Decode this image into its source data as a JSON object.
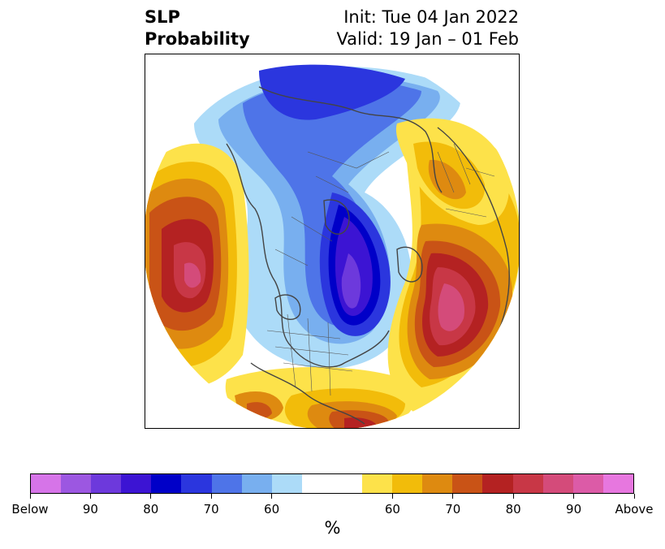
{
  "title": {
    "left_line1": "SLP",
    "left_line2": "Probability",
    "right_line1": "Init: Tue 04 Jan 2022",
    "right_line2": "Valid: 19 Jan – 01 Feb"
  },
  "colorbar": {
    "colors": [
      "#d674e8",
      "#9c57e1",
      "#6d39dc",
      "#3c14d3",
      "#0000c8",
      "#2b36de",
      "#4e74e8",
      "#78afef",
      "#acdbf8",
      "#ffffff",
      "#ffffff",
      "#fde24a",
      "#f2bc0a",
      "#de8a10",
      "#c95316",
      "#b42222",
      "#c83746",
      "#d44b7a",
      "#dc5ba7",
      "#e777df"
    ],
    "tick_labels": [
      "Below",
      "90",
      "80",
      "70",
      "60",
      "60",
      "70",
      "80",
      "90",
      "Above"
    ],
    "unit": "%"
  },
  "legend_colors": {
    "below_deep": "#6d39dc",
    "below_strong": "#0000c8",
    "below_mid": "#4e74e8",
    "below_light": "#acdbf8",
    "above_light": "#fde24a",
    "above_mid": "#de8a10",
    "above_strong": "#b42222",
    "above_deep": "#d44b7a",
    "coastline": "#444444"
  }
}
